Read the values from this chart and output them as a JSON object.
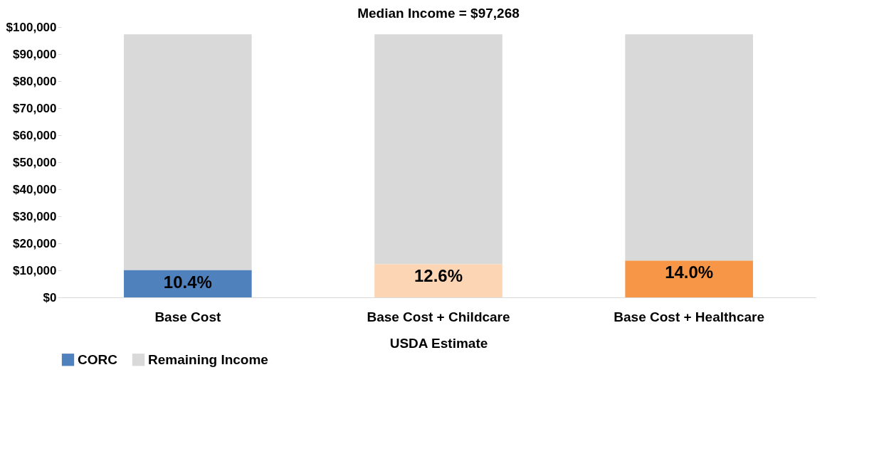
{
  "chart_data": {
    "type": "bar",
    "title": "Median Income = $97,268",
    "xlabel": "USDA Estimate",
    "categories": [
      "Base Cost",
      "Base Cost + Childcare",
      "Base Cost + Healthcare"
    ],
    "stacked": true,
    "series": [
      {
        "name": "CORC",
        "color": "#4f81bd",
        "colors": [
          "#4f81bd",
          "#fcd5b5",
          "#f79646"
        ],
        "values": [
          10100,
          12300,
          13600
        ]
      },
      {
        "name": "Remaining Income",
        "color": "#d9d9d9",
        "values": [
          87200,
          85000,
          83700
        ]
      }
    ],
    "annotations": [
      {
        "text": "10.4%",
        "x": "Base Cost",
        "y": 10100
      },
      {
        "text": "12.6%",
        "x": "Base Cost + Childcare",
        "y": 12300
      },
      {
        "text": "14.0%",
        "x": "Base Cost + Healthcare",
        "y": 13600
      }
    ],
    "ylim": [
      0,
      100000
    ],
    "yticks": [
      {
        "value": 0,
        "label": "$0"
      },
      {
        "value": 10000,
        "label": "$10,000"
      },
      {
        "value": 20000,
        "label": "$20,000"
      },
      {
        "value": 30000,
        "label": "$30,000"
      },
      {
        "value": 40000,
        "label": "$40,000"
      },
      {
        "value": 50000,
        "label": "$50,000"
      },
      {
        "value": 60000,
        "label": "$60,000"
      },
      {
        "value": 70000,
        "label": "$70,000"
      },
      {
        "value": 80000,
        "label": "$80,000"
      },
      {
        "value": 90000,
        "label": "$90,000"
      },
      {
        "value": 100000,
        "label": "$100,000"
      }
    ],
    "grid": false,
    "legend": "bottom left"
  }
}
